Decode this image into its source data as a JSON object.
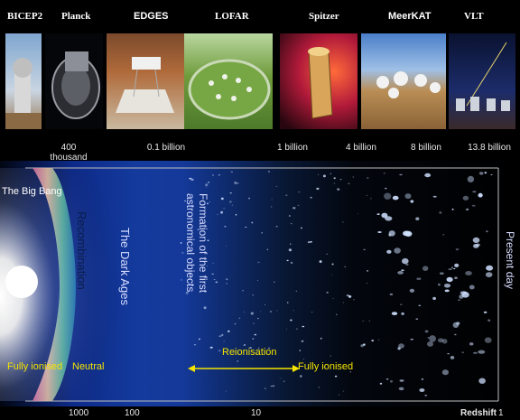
{
  "telescopes": [
    "BICEP2",
    "Planck",
    "EDGES",
    "LOFAR",
    "Spitzer",
    "MeerKAT",
    "VLT"
  ],
  "timeline_ticks": [
    "400 thousand",
    "0.1 billion",
    "1 billion",
    "4 billion",
    "8 billion",
    "13.8 billion"
  ],
  "diagram": {
    "big_bang": "The Big Bang",
    "recombination": "Recombination",
    "dark_ages": "The Dark Ages",
    "formation": "Formation of the first astronomical objects",
    "present_day": "Present day",
    "reionisation": "Reionisation",
    "fully_ionised_left": "Fully ionised",
    "neutral": "Neutral",
    "fully_ionised_right": "Fully ionised"
  },
  "redshift": {
    "label": "Redshift",
    "ticks": [
      "1000",
      "100",
      "10",
      "1"
    ]
  },
  "colors": {
    "annotation": "#f5e400",
    "dark_ages": "#143a9c"
  }
}
